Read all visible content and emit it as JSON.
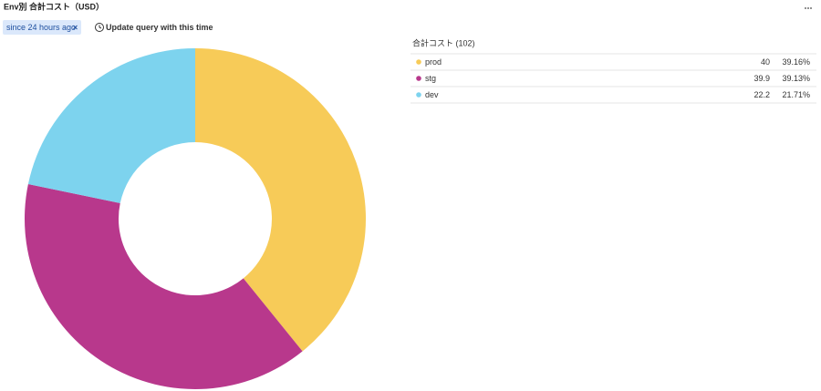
{
  "toolbar": {
    "time_filter": "since 24 hours ago",
    "action": "Update query with this time"
  },
  "chart_data": {
    "type": "donut",
    "title": "Env別 合計コスト（USD）",
    "legend_title": "合計コスト (102)",
    "categories": [
      "prod",
      "stg",
      "dev"
    ],
    "values": [
      40,
      39.9,
      22.2
    ],
    "share_labels": [
      "39.16%",
      "39.13%",
      "21.71%"
    ],
    "colors": [
      "#f7cb58",
      "#b8388c",
      "#7dd3ee"
    ]
  }
}
